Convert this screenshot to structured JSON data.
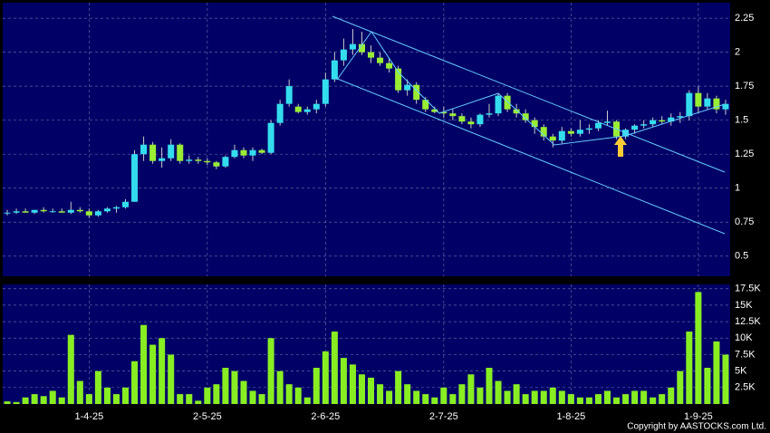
{
  "chart_data": [
    {
      "type": "candlestick",
      "open": [
        0.82,
        0.82,
        0.83,
        0.82,
        0.84,
        0.83,
        0.83,
        0.82,
        0.84,
        0.83,
        0.8,
        0.83,
        0.85,
        0.86,
        0.9,
        1.25,
        1.32,
        1.2,
        1.22,
        1.32,
        1.2,
        1.21,
        1.2,
        1.19,
        1.16,
        1.23,
        1.28,
        1.24,
        1.28,
        1.26,
        1.48,
        1.62,
        1.6,
        1.56,
        1.58,
        1.62,
        1.8,
        1.94,
        2.02,
        2.06,
        2.0,
        1.96,
        1.92,
        1.88,
        1.72,
        1.76,
        1.65,
        1.58,
        1.56,
        1.55,
        1.53,
        1.49,
        1.47,
        1.54,
        1.55,
        1.68,
        1.58,
        1.55,
        1.5,
        1.45,
        1.38,
        1.35,
        1.42,
        1.4,
        1.43,
        1.44,
        1.48,
        1.49,
        1.38,
        1.43,
        1.46,
        1.47,
        1.5,
        1.49,
        1.52,
        1.53,
        1.7,
        1.6,
        1.66,
        1.58
      ],
      "high": [
        0.84,
        0.85,
        0.85,
        0.84,
        0.86,
        0.85,
        0.85,
        0.9,
        0.86,
        0.85,
        0.84,
        0.86,
        0.87,
        0.92,
        1.28,
        1.38,
        1.34,
        1.3,
        1.36,
        1.33,
        1.24,
        1.23,
        1.22,
        1.2,
        1.24,
        1.32,
        1.3,
        1.3,
        1.29,
        1.5,
        1.65,
        1.8,
        1.62,
        1.6,
        1.65,
        1.85,
        2.0,
        2.1,
        2.17,
        2.15,
        2.05,
        2.0,
        1.96,
        1.9,
        1.8,
        1.78,
        1.67,
        1.6,
        1.6,
        1.58,
        1.55,
        1.52,
        1.55,
        1.62,
        1.7,
        1.7,
        1.62,
        1.58,
        1.52,
        1.47,
        1.4,
        1.45,
        1.44,
        1.5,
        1.47,
        1.5,
        1.57,
        1.5,
        1.44,
        1.47,
        1.5,
        1.52,
        1.53,
        1.55,
        1.56,
        1.72,
        1.75,
        1.7,
        1.68,
        1.65
      ],
      "low": [
        0.8,
        0.81,
        0.82,
        0.81,
        0.82,
        0.82,
        0.82,
        0.81,
        0.82,
        0.78,
        0.79,
        0.82,
        0.82,
        0.85,
        0.9,
        1.2,
        1.18,
        1.15,
        1.2,
        1.18,
        1.18,
        1.18,
        1.17,
        1.14,
        1.15,
        1.22,
        1.22,
        1.2,
        1.25,
        1.25,
        1.46,
        1.6,
        1.55,
        1.54,
        1.55,
        1.6,
        1.78,
        1.9,
        1.98,
        1.98,
        1.92,
        1.9,
        1.85,
        1.7,
        1.68,
        1.62,
        1.56,
        1.55,
        1.52,
        1.5,
        1.47,
        1.44,
        1.45,
        1.52,
        1.53,
        1.56,
        1.52,
        1.48,
        1.4,
        1.35,
        1.3,
        1.33,
        1.38,
        1.38,
        1.4,
        1.42,
        1.46,
        1.36,
        1.36,
        1.4,
        1.44,
        1.45,
        1.47,
        1.46,
        1.48,
        1.5,
        1.55,
        1.58,
        1.55,
        1.54
      ],
      "close": [
        0.82,
        0.83,
        0.82,
        0.84,
        0.83,
        0.83,
        0.82,
        0.84,
        0.83,
        0.8,
        0.83,
        0.85,
        0.86,
        0.9,
        1.25,
        1.32,
        1.2,
        1.22,
        1.32,
        1.2,
        1.21,
        1.2,
        1.19,
        1.16,
        1.23,
        1.28,
        1.24,
        1.28,
        1.26,
        1.48,
        1.62,
        1.75,
        1.56,
        1.58,
        1.62,
        1.8,
        1.94,
        2.02,
        2.06,
        2.0,
        1.96,
        1.92,
        1.88,
        1.72,
        1.76,
        1.65,
        1.58,
        1.56,
        1.55,
        1.53,
        1.49,
        1.47,
        1.54,
        1.55,
        1.68,
        1.58,
        1.55,
        1.5,
        1.45,
        1.38,
        1.35,
        1.42,
        1.4,
        1.43,
        1.44,
        1.48,
        1.49,
        1.38,
        1.43,
        1.46,
        1.47,
        1.5,
        1.49,
        1.52,
        1.53,
        1.7,
        1.6,
        1.66,
        1.58,
        1.62
      ],
      "up_color": "#33ddee",
      "down_color": "#99ee33",
      "wick_color": "#cccccc",
      "ylim": [
        0.352,
        2.364
      ],
      "yticks": [
        0.5,
        0.75,
        1,
        1.25,
        1.5,
        1.75,
        2,
        2.25
      ],
      "grid": true
    },
    {
      "type": "bar",
      "categories": [
        null,
        null,
        null,
        null,
        null,
        null,
        null,
        null,
        null,
        "1-4-25",
        null,
        null,
        null,
        null,
        null,
        null,
        null,
        null,
        null,
        null,
        null,
        null,
        "2-5-25",
        null,
        null,
        null,
        null,
        null,
        null,
        null,
        null,
        null,
        null,
        null,
        null,
        "2-6-25",
        null,
        null,
        null,
        null,
        null,
        null,
        null,
        null,
        null,
        null,
        null,
        null,
        "2-7-25",
        null,
        null,
        null,
        null,
        null,
        null,
        null,
        null,
        null,
        null,
        null,
        null,
        null,
        "1-8-25",
        null,
        null,
        null,
        null,
        null,
        null,
        null,
        null,
        null,
        null,
        null,
        null,
        null,
        "1-9-25",
        null,
        null,
        null
      ],
      "values": [
        400,
        300,
        1000,
        1500,
        1200,
        2000,
        1000,
        10500,
        3500,
        1500,
        5000,
        2500,
        1500,
        2500,
        6500,
        12000,
        9000,
        10000,
        7500,
        1500,
        1500,
        500,
        2500,
        3000,
        5500,
        5000,
        3500,
        2000,
        1500,
        10000,
        5000,
        3000,
        2500,
        1000,
        5500,
        8000,
        11000,
        7000,
        6000,
        4500,
        4000,
        3000,
        2000,
        5000,
        3000,
        2000,
        1500,
        1000,
        2500,
        1500,
        3000,
        4500,
        2500,
        5500,
        3500,
        2000,
        3000,
        1500,
        2000,
        2000,
        2500,
        2000,
        1500,
        1000,
        1000,
        1500,
        2000,
        1000,
        1500,
        2000,
        2000,
        1000,
        1500,
        2500,
        5000,
        11000,
        17000,
        5500,
        9500,
        7500
      ],
      "color": "#88ee22",
      "ylim": [
        0,
        18150
      ],
      "yticks": [
        {
          "value": 2500,
          "label": "2.5K"
        },
        {
          "value": 5000,
          "label": "5K"
        },
        {
          "value": 7500,
          "label": "7.5K"
        },
        {
          "value": 10000,
          "label": "10K"
        },
        {
          "value": 12500,
          "label": "12.5K"
        },
        {
          "value": 15000,
          "label": "15K"
        },
        {
          "value": 17500,
          "label": "17.5K"
        }
      ],
      "grid": true
    }
  ],
  "copyright": "Copyright by AASTOCKS.com Ltd."
}
